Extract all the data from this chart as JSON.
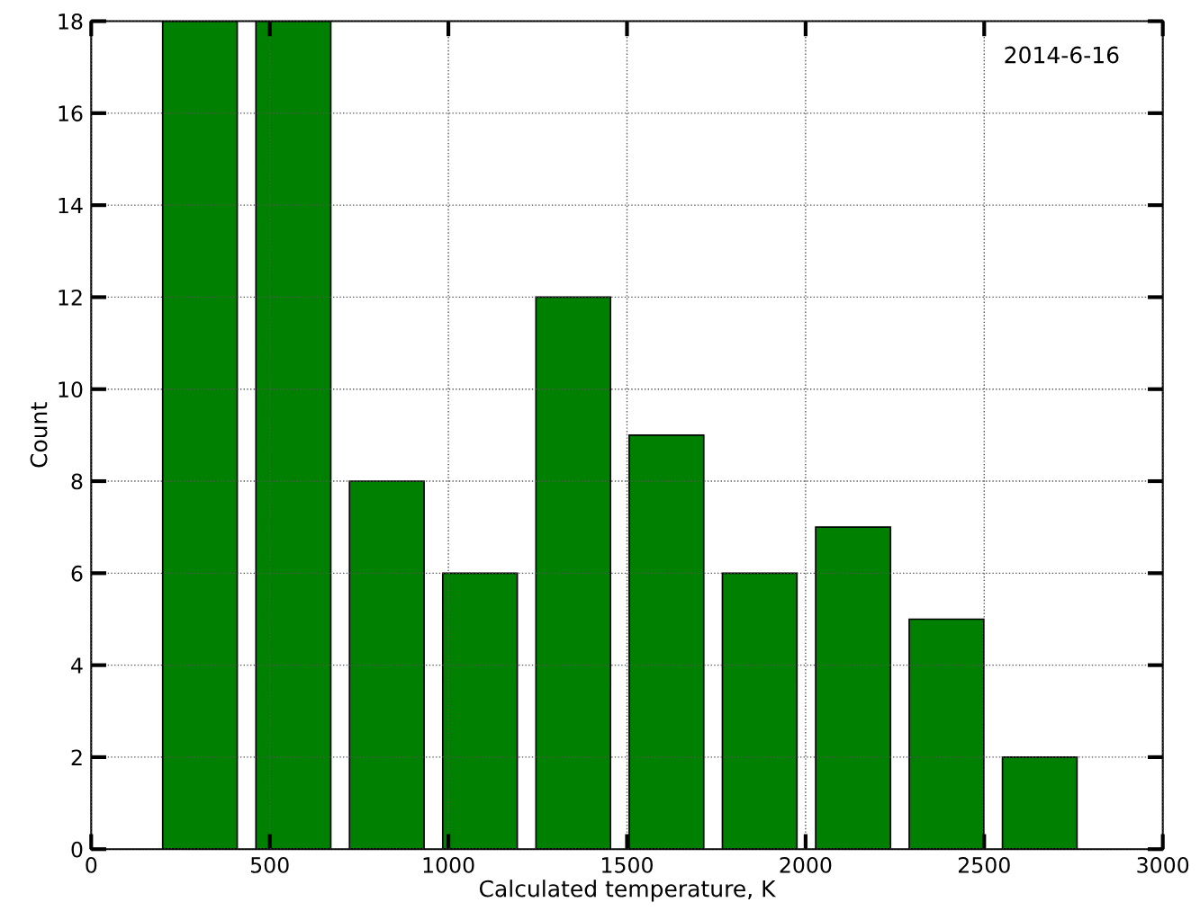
{
  "chart_data": {
    "type": "histogram",
    "xlabel": "Calculated temperature, K",
    "ylabel": "Count",
    "bins": [
      174,
      435,
      697,
      958,
      1219,
      1480,
      1741,
      2002,
      2264,
      2525,
      2786
    ],
    "values": [
      18,
      18,
      8,
      6,
      12,
      9,
      6,
      7,
      5,
      2
    ],
    "color": "#008000",
    "xlim": [
      0,
      3000
    ],
    "xticks": [
      0,
      500,
      1000,
      1500,
      2000,
      2500,
      3000
    ],
    "ylim": [
      0,
      18
    ],
    "yticks": [
      0,
      2,
      4,
      6,
      8,
      10,
      12,
      14,
      16,
      18
    ],
    "grid": true,
    "annotations": [
      "2014-6-16"
    ]
  }
}
